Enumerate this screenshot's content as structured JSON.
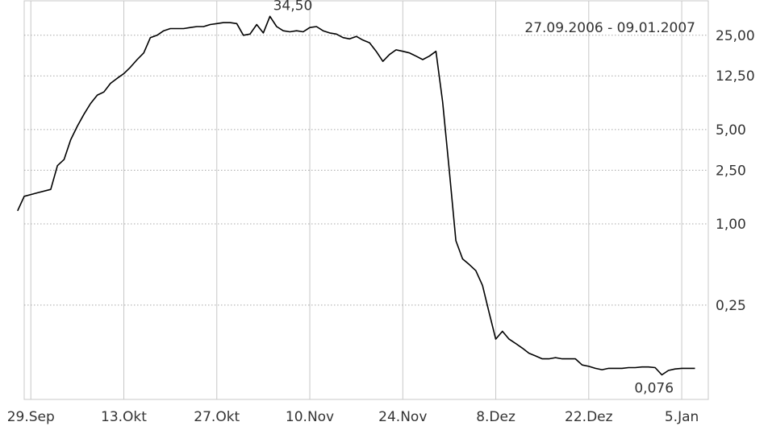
{
  "chart_data": {
    "type": "line",
    "title": "",
    "xlabel": "",
    "ylabel": "",
    "date_range": "27.09.2006 - 09.01.2007",
    "y_scale": "log",
    "grid": {
      "vertical": true,
      "horizontal": true,
      "horizontal_style": "dotted"
    },
    "y_axis_side": "right",
    "ylim": [
      0.05,
      45
    ],
    "xlim": [
      "2006-09-28",
      "2007-01-09"
    ],
    "y_ticks": [
      {
        "value": 25,
        "label": "25,00"
      },
      {
        "value": 12.5,
        "label": "12,50"
      },
      {
        "value": 5,
        "label": "5,00"
      },
      {
        "value": 2.5,
        "label": "2,50"
      },
      {
        "value": 1,
        "label": "1,00"
      },
      {
        "value": 0.25,
        "label": "0,25"
      }
    ],
    "x_ticks": [
      {
        "date": "2006-09-29",
        "label": "29.Sep"
      },
      {
        "date": "2006-10-13",
        "label": "13.Okt"
      },
      {
        "date": "2006-10-27",
        "label": "27.Okt"
      },
      {
        "date": "2006-11-10",
        "label": "10.Nov"
      },
      {
        "date": "2006-11-24",
        "label": "24.Nov"
      },
      {
        "date": "2006-12-08",
        "label": "8.Dez"
      },
      {
        "date": "2006-12-22",
        "label": "22.Dez"
      },
      {
        "date": "2007-01-05",
        "label": "5.Jan"
      }
    ],
    "annotations": [
      {
        "date": "2006-11-04",
        "value": 34.5,
        "label": "34,50"
      },
      {
        "date": "2007-01-02",
        "value": 0.076,
        "label": "0,076"
      }
    ],
    "series": [
      {
        "color": "#000000",
        "points": [
          [
            "2006-09-27",
            1.25
          ],
          [
            "2006-09-28",
            1.6
          ],
          [
            "2006-09-29",
            1.65
          ],
          [
            "2006-09-30",
            1.7
          ],
          [
            "2006-10-02",
            1.8
          ],
          [
            "2006-10-03",
            2.7
          ],
          [
            "2006-10-04",
            3.0
          ],
          [
            "2006-10-05",
            4.2
          ],
          [
            "2006-10-06",
            5.3
          ],
          [
            "2006-10-07",
            6.5
          ],
          [
            "2006-10-08",
            7.8
          ],
          [
            "2006-10-09",
            9.0
          ],
          [
            "2006-10-10",
            9.5
          ],
          [
            "2006-10-11",
            11.0
          ],
          [
            "2006-10-12",
            12.0
          ],
          [
            "2006-10-13",
            13.0
          ],
          [
            "2006-10-14",
            14.5
          ],
          [
            "2006-10-15",
            16.5
          ],
          [
            "2006-10-16",
            18.5
          ],
          [
            "2006-10-17",
            24.0
          ],
          [
            "2006-10-18",
            25.0
          ],
          [
            "2006-10-19",
            27.0
          ],
          [
            "2006-10-20",
            28.0
          ],
          [
            "2006-10-21",
            28.0
          ],
          [
            "2006-10-22",
            28.0
          ],
          [
            "2006-10-23",
            28.5
          ],
          [
            "2006-10-24",
            29.0
          ],
          [
            "2006-10-25",
            29.0
          ],
          [
            "2006-10-26",
            30.0
          ],
          [
            "2006-10-27",
            30.5
          ],
          [
            "2006-10-28",
            31.0
          ],
          [
            "2006-10-29",
            31.0
          ],
          [
            "2006-10-30",
            30.5
          ],
          [
            "2006-10-31",
            25.0
          ],
          [
            "2006-11-01",
            25.5
          ],
          [
            "2006-11-02",
            30.0
          ],
          [
            "2006-11-03",
            26.0
          ],
          [
            "2006-11-04",
            34.5
          ],
          [
            "2006-11-05",
            29.0
          ],
          [
            "2006-11-06",
            27.0
          ],
          [
            "2006-11-07",
            26.5
          ],
          [
            "2006-11-08",
            27.0
          ],
          [
            "2006-11-09",
            26.5
          ],
          [
            "2006-11-10",
            28.5
          ],
          [
            "2006-11-11",
            29.0
          ],
          [
            "2006-11-12",
            27.0
          ],
          [
            "2006-11-13",
            26.0
          ],
          [
            "2006-11-14",
            25.5
          ],
          [
            "2006-11-15",
            24.0
          ],
          [
            "2006-11-16",
            23.5
          ],
          [
            "2006-11-17",
            24.5
          ],
          [
            "2006-11-18",
            23.0
          ],
          [
            "2006-11-19",
            22.0
          ],
          [
            "2006-11-20",
            19.0
          ],
          [
            "2006-11-21",
            16.0
          ],
          [
            "2006-11-22",
            18.0
          ],
          [
            "2006-11-23",
            19.5
          ],
          [
            "2006-11-24",
            19.0
          ],
          [
            "2006-11-25",
            18.5
          ],
          [
            "2006-11-26",
            17.5
          ],
          [
            "2006-11-27",
            16.5
          ],
          [
            "2006-11-28",
            17.5
          ],
          [
            "2006-11-29",
            19.0
          ],
          [
            "2006-11-30",
            8.0
          ],
          [
            "2006-12-01",
            2.5
          ],
          [
            "2006-12-02",
            0.75
          ],
          [
            "2006-12-03",
            0.55
          ],
          [
            "2006-12-04",
            0.5
          ],
          [
            "2006-12-05",
            0.45
          ],
          [
            "2006-12-06",
            0.35
          ],
          [
            "2006-12-07",
            0.22
          ],
          [
            "2006-12-08",
            0.14
          ],
          [
            "2006-12-09",
            0.16
          ],
          [
            "2006-12-10",
            0.14
          ],
          [
            "2006-12-11",
            0.13
          ],
          [
            "2006-12-12",
            0.12
          ],
          [
            "2006-12-13",
            0.11
          ],
          [
            "2006-12-14",
            0.105
          ],
          [
            "2006-12-15",
            0.1
          ],
          [
            "2006-12-16",
            0.1
          ],
          [
            "2006-12-17",
            0.102
          ],
          [
            "2006-12-18",
            0.1
          ],
          [
            "2006-12-19",
            0.1
          ],
          [
            "2006-12-20",
            0.1
          ],
          [
            "2006-12-21",
            0.09
          ],
          [
            "2006-12-22",
            0.088
          ],
          [
            "2006-12-23",
            0.085
          ],
          [
            "2006-12-24",
            0.083
          ],
          [
            "2006-12-25",
            0.085
          ],
          [
            "2006-12-26",
            0.085
          ],
          [
            "2006-12-27",
            0.085
          ],
          [
            "2006-12-28",
            0.086
          ],
          [
            "2006-12-29",
            0.086
          ],
          [
            "2006-12-30",
            0.087
          ],
          [
            "2006-12-31",
            0.087
          ],
          [
            "2007-01-01",
            0.086
          ],
          [
            "2007-01-02",
            0.076
          ],
          [
            "2007-01-03",
            0.082
          ],
          [
            "2007-01-04",
            0.084
          ],
          [
            "2007-01-05",
            0.085
          ],
          [
            "2007-01-06",
            0.085
          ],
          [
            "2007-01-07",
            0.085
          ]
        ]
      }
    ]
  }
}
